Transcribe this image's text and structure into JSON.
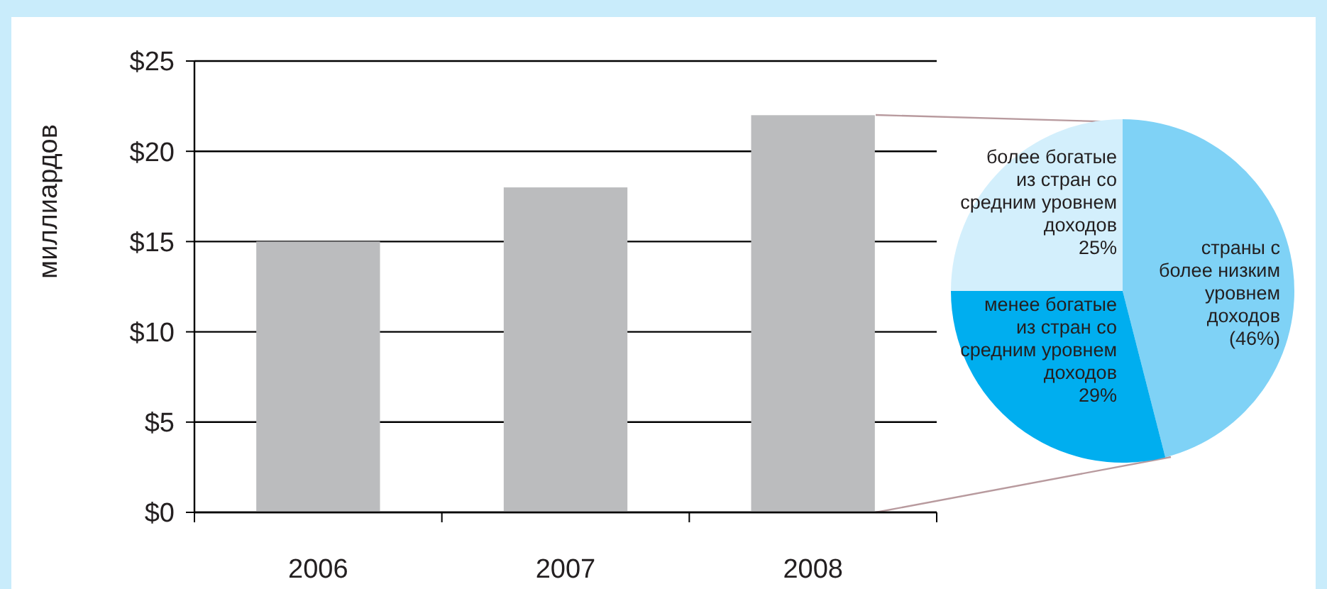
{
  "chart_data": [
    {
      "type": "bar",
      "ylabel": "миллиардов",
      "categories": [
        "2006",
        "2007",
        "2008"
      ],
      "values": [
        15,
        18,
        22
      ],
      "color": "#bbbcbe",
      "ylim": [
        0,
        25
      ],
      "yticks": [
        {
          "value": 0,
          "label": "$0"
        },
        {
          "value": 5,
          "label": "$5"
        },
        {
          "value": 10,
          "label": "$10"
        },
        {
          "value": 15,
          "label": "$15"
        },
        {
          "value": 20,
          "label": "$20"
        },
        {
          "value": 25,
          "label": "$25"
        }
      ],
      "grid": "y"
    },
    {
      "type": "pie",
      "categories": [
        "страны с\nболее низким\nуровнем\nдоходов",
        "менее богатые\nиз стран со\nсредним уровнем\nдоходов",
        "более богатые\nиз стран со\nсредним уровнем\nдоходов"
      ],
      "values": [
        46,
        29,
        25
      ],
      "colors": [
        "#7fd2f6",
        "#00aeef",
        "#d3effc"
      ],
      "value_labels": [
        "(46%)",
        "29%",
        "25%"
      ]
    }
  ]
}
